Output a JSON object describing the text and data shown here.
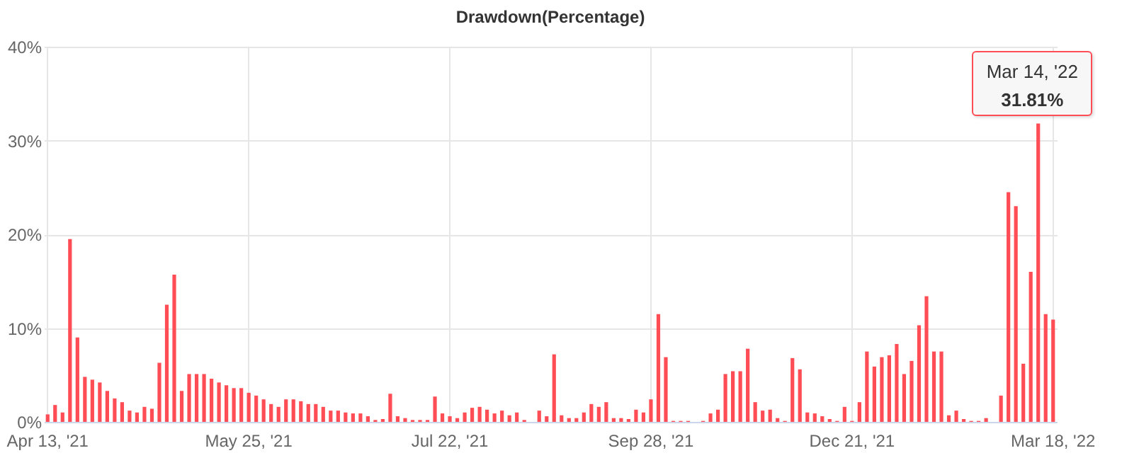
{
  "chart_data": {
    "type": "bar",
    "title": "Drawdown(Percentage)",
    "categories": [
      "Apr 13, '21",
      null,
      null,
      null,
      null,
      null,
      null,
      null,
      null,
      null,
      null,
      null,
      null,
      null,
      null,
      null,
      null,
      null,
      null,
      null,
      null,
      null,
      null,
      null,
      null,
      null,
      null,
      "May 25, '21",
      null,
      null,
      null,
      null,
      null,
      null,
      null,
      null,
      null,
      null,
      null,
      null,
      null,
      null,
      null,
      null,
      null,
      null,
      null,
      null,
      null,
      null,
      null,
      null,
      null,
      null,
      "Jul 22, '21",
      null,
      null,
      null,
      null,
      null,
      null,
      null,
      null,
      null,
      null,
      null,
      null,
      null,
      null,
      null,
      null,
      null,
      null,
      null,
      null,
      null,
      null,
      null,
      null,
      null,
      null,
      "Sep 28, '21",
      null,
      null,
      null,
      null,
      null,
      null,
      null,
      null,
      null,
      null,
      null,
      null,
      null,
      null,
      null,
      null,
      null,
      null,
      null,
      null,
      null,
      null,
      null,
      null,
      null,
      null,
      "Dec 21, '21",
      null,
      null,
      null,
      null,
      null,
      null,
      null,
      null,
      null,
      null,
      null,
      null,
      null,
      null,
      null,
      null,
      null,
      null,
      null,
      null,
      null,
      null,
      null,
      null,
      null,
      null,
      "Mar 18, '22"
    ],
    "values": [
      0.8,
      1.8,
      1.0,
      19.5,
      9.0,
      4.8,
      4.5,
      4.2,
      3.3,
      2.5,
      2.1,
      1.2,
      1.0,
      1.6,
      1.4,
      6.3,
      12.5,
      15.7,
      3.3,
      5.1,
      5.1,
      5.1,
      4.6,
      4.2,
      3.9,
      3.6,
      3.6,
      3.1,
      2.8,
      2.4,
      1.9,
      1.6,
      2.4,
      2.4,
      2.2,
      1.9,
      1.9,
      1.6,
      1.2,
      1.2,
      1.0,
      0.9,
      0.9,
      0.6,
      0.2,
      0.3,
      3.0,
      0.6,
      0.4,
      0.2,
      0.2,
      0.2,
      2.7,
      0.9,
      0.6,
      0.4,
      1.0,
      1.5,
      1.6,
      1.3,
      0.9,
      1.2,
      0.7,
      1.0,
      0.2,
      0.0,
      1.2,
      0.6,
      7.2,
      0.7,
      0.4,
      0.4,
      1.0,
      1.9,
      1.6,
      2.1,
      0.4,
      0.4,
      0.3,
      1.3,
      1.0,
      2.4,
      11.5,
      6.9,
      0.1,
      0.1,
      0.1,
      0.0,
      0.1,
      0.9,
      1.3,
      5.1,
      5.4,
      5.4,
      7.8,
      2.1,
      1.2,
      1.3,
      0.4,
      0.1,
      6.8,
      5.6,
      1.0,
      0.9,
      0.6,
      0.3,
      0.1,
      1.6,
      0.1,
      2.1,
      7.5,
      5.9,
      6.9,
      7.1,
      8.3,
      5.1,
      6.5,
      10.3,
      13.4,
      7.5,
      7.5,
      0.7,
      1.2,
      0.3,
      0.1,
      0.1,
      0.4,
      0.0,
      2.8,
      24.5,
      23.0,
      6.2,
      16.0,
      31.81,
      11.5,
      10.9
    ],
    "color": "#ff4d55",
    "ylim": [
      0,
      40
    ],
    "yticks": [
      {
        "value": 0,
        "label": "0%"
      },
      {
        "value": 10,
        "label": "10%"
      },
      {
        "value": 20,
        "label": "20%"
      },
      {
        "value": 30,
        "label": "30%"
      },
      {
        "value": 40,
        "label": "40%"
      }
    ],
    "grid": true,
    "value_labels": [
      null,
      null,
      null,
      null,
      null,
      null,
      null,
      null,
      null,
      null,
      null,
      null,
      null,
      null,
      null,
      null,
      null,
      null,
      null,
      null,
      null,
      null,
      null,
      null,
      null,
      null,
      null,
      null,
      null,
      null,
      null,
      null,
      null,
      null,
      null,
      null,
      null,
      null,
      null,
      null,
      null,
      null,
      null,
      null,
      null,
      null,
      null,
      null,
      null,
      null,
      null,
      null,
      null,
      null,
      null,
      null,
      null,
      null,
      null,
      null,
      null,
      null,
      null,
      null,
      null,
      null,
      null,
      null,
      null,
      null,
      null,
      null,
      null,
      null,
      null,
      null,
      null,
      null,
      null,
      null,
      null,
      null,
      null,
      null,
      null,
      null,
      null,
      null,
      null,
      null,
      null,
      null,
      null,
      null,
      null,
      null,
      null,
      null,
      null,
      null,
      null,
      null,
      null,
      null,
      null,
      null,
      null,
      null,
      null,
      null,
      null,
      null,
      null,
      null,
      null,
      null,
      null,
      null,
      null,
      null,
      null,
      null,
      null,
      null,
      null,
      null,
      null,
      null,
      null,
      null,
      null,
      null,
      null,
      "31.81%",
      null,
      null
    ],
    "annotations": [
      "Mar 14, '22"
    ]
  }
}
